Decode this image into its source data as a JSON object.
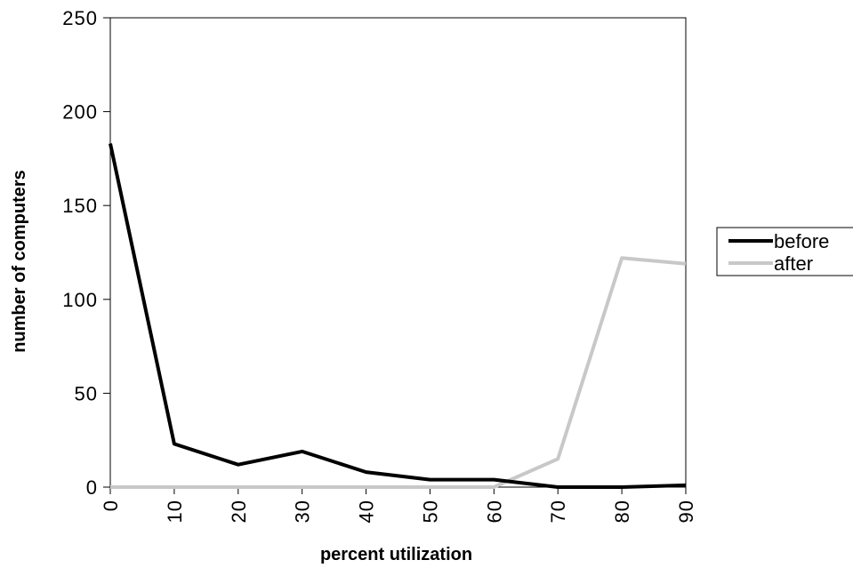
{
  "chart_data": {
    "type": "line",
    "title": "",
    "xlabel": "percent utilization",
    "ylabel": "number of computers",
    "x": [
      0,
      10,
      20,
      30,
      40,
      50,
      60,
      70,
      80,
      90
    ],
    "x_tick_labels": [
      "0",
      "10",
      "20",
      "30",
      "40",
      "50",
      "60",
      "70",
      "80",
      "90"
    ],
    "y_tick_labels": [
      "0",
      "50",
      "100",
      "150",
      "200",
      "250"
    ],
    "ylim": [
      0,
      250
    ],
    "grid": false,
    "legend_position": "right",
    "series": [
      {
        "name": "before",
        "color": "#000000",
        "values": [
          183,
          23,
          12,
          19,
          8,
          4,
          4,
          0,
          0,
          1
        ]
      },
      {
        "name": "after",
        "color": "#c8c8c8",
        "values": [
          0,
          0,
          0,
          0,
          0,
          0,
          0,
          15,
          122,
          119
        ]
      }
    ]
  }
}
